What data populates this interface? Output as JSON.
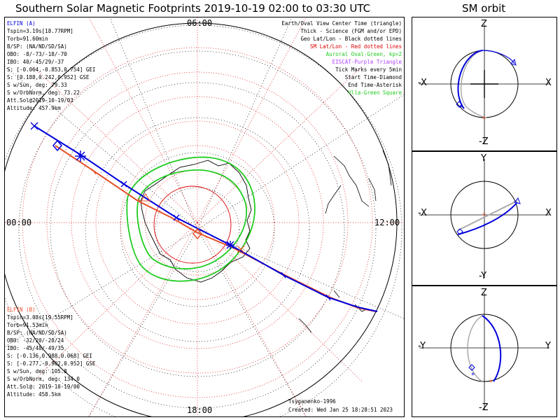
{
  "title": "Southern Solar Magnetic Footprints 2019-10-19 02:00 to 03:30 UTC",
  "orbit_title": "SM orbit",
  "map": {
    "mlt_labels": {
      "top": "06:00",
      "left": "00:00",
      "right": "12:00",
      "bottom": "18:00"
    },
    "colors": {
      "probe_a": "#0000dd",
      "probe_b": "#e5502a",
      "geo_grid": "#000000",
      "sm_grid": "#dd0000",
      "oval": "#22cc22",
      "eiscat": "#b040ff",
      "dotted": "#cc0000"
    }
  },
  "legend": [
    {
      "text": "Earth/Oval View Center Time (triangle)",
      "color": "#000000"
    },
    {
      "text": "Thick - Science (FGM and/or EPD)",
      "color": "#000000"
    },
    {
      "text": "Geo Lat/Lon - Black dotted lines",
      "color": "#000000"
    },
    {
      "text": "SM Lat/Lon - Red dotted lines",
      "color": "#dd0000"
    },
    {
      "text": "Auroral Oval-Green, kp=2",
      "color": "#22cc22"
    },
    {
      "text": "EISCAT-Purple Triangle",
      "color": "#b040ff"
    },
    {
      "text": "Tick Marks every 5min",
      "color": "#000000"
    },
    {
      "text": "Start Time-Diamond",
      "color": "#000000"
    },
    {
      "text": "End Time-Asterisk",
      "color": "#000000"
    },
    {
      "text": "Vlla-Green Square",
      "color": "#22cc22"
    }
  ],
  "probe_a": {
    "name": "ELFIN (A)",
    "lines": [
      "Tspin=3.19s[18.77RPM]",
      "Torb=91.60min",
      "B/SP: (NA/ND/SD/SA)",
      "OBO: -8/-73/-18/-70",
      "IBO: 40/-45/29/-37",
      "S: [-0.064,-0.853,0.754] GEI",
      "S: [0.188,0.242,0.952] GSE",
      "S w/Sun, deg: 79.33",
      "S w/OrbNorm, deg: 73.22",
      "Att.Sol@2019-10-19/03",
      "Altitude: 457.9km"
    ]
  },
  "probe_b": {
    "name": "ELFIN (B)",
    "lines": [
      "Tspin=3.08s[19.55RPM]",
      "Torb=91.53min",
      "B/SP: (NA/ND/SD/SA)",
      "OBO: -32/20/-28/24",
      "IBO: -45/48/-49/35",
      "S: [-0.136,0.988,0.068] GEI",
      "S: [-0.277,-0.902,0.952] GSE",
      "S w/Sun, deg: 105.8",
      "S w/OrbNorm, deg: 134.0",
      "Att.Sol@: 2019-10-19/00",
      "Altitude: 458.5km"
    ]
  },
  "footer": {
    "model": "Tsyganenko-1996",
    "created": "Created: Wed Jan 25 18:28:51 2023"
  },
  "orbit_panels": [
    {
      "top": "Z",
      "bottom": "-Z",
      "left": "-X",
      "right": "X"
    },
    {
      "top": "Y",
      "bottom": "-Y",
      "left": "-X",
      "right": "X"
    },
    {
      "top": "Z",
      "bottom": "-Z",
      "left": "-Y",
      "right": "Y"
    }
  ]
}
